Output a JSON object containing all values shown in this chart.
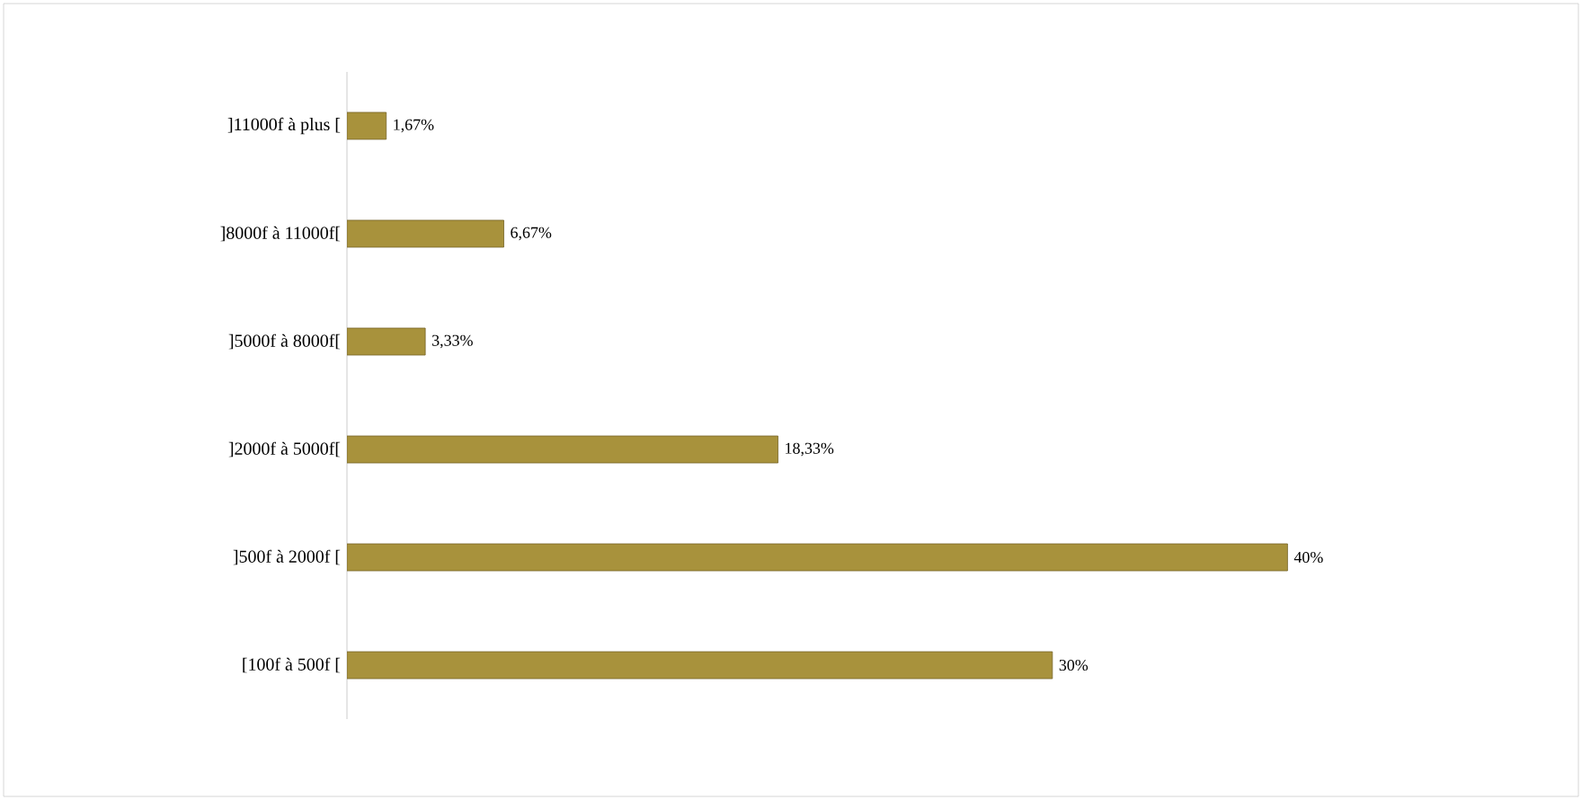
{
  "chart_data": {
    "type": "bar",
    "orientation": "horizontal",
    "categories": [
      "]11000f à plus [",
      "]8000f à 11000f[",
      "]5000f à 8000f[",
      "]2000f à 5000f[",
      "]500f à 2000f [",
      "[100f à 500f ["
    ],
    "values": [
      1.67,
      6.67,
      3.33,
      18.33,
      40,
      30
    ],
    "value_labels": [
      "1,67%",
      "6,67%",
      "3,33%",
      "18,33%",
      "40%",
      "30%"
    ],
    "color": "#a8923c"
  }
}
